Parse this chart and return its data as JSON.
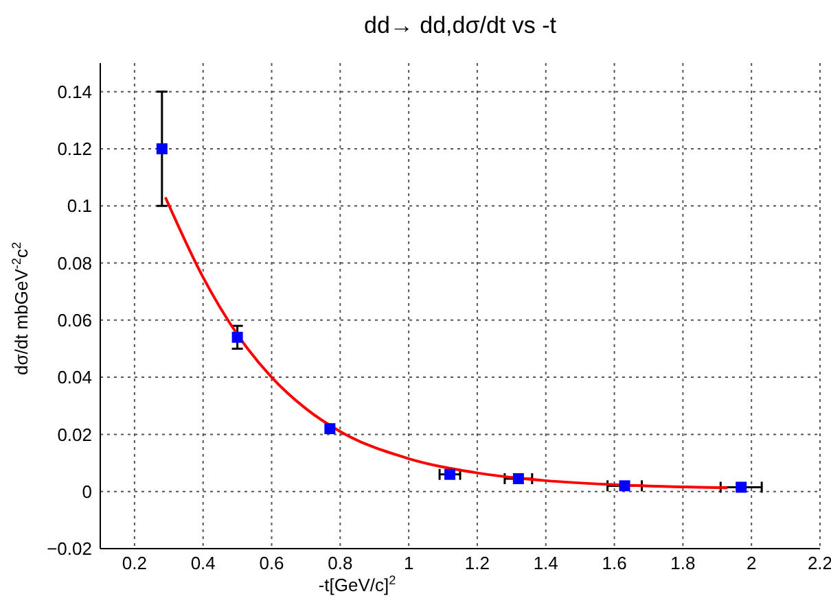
{
  "chart_data": {
    "type": "scatter",
    "title": "dd→ dd,dσ/dt vs -t",
    "xlabel": "-t[GeV/c]$^{2}$",
    "ylabel": "dσ/dt mbGeV$^{-2}$c$^{2}$",
    "xlim": [
      0.1,
      2.2
    ],
    "xticks": [
      0.2,
      0.4,
      0.6,
      0.8,
      1,
      1.2,
      1.4,
      1.6,
      1.8,
      2,
      2.2
    ],
    "ylim": [
      -0.02,
      0.15
    ],
    "yticks": [
      {
        "value": -0.02,
        "label": "−0.02"
      },
      0,
      0.02,
      0.04,
      0.06,
      0.08,
      0.1,
      0.12,
      0.14
    ],
    "grid": true,
    "marker": "square",
    "series": [
      {
        "color": "#0000ff",
        "x": [
          0.28,
          0.5,
          0.77,
          1.12,
          1.32,
          1.63,
          1.97
        ],
        "values": [
          0.12,
          0.054,
          0.022,
          0.006,
          0.0045,
          0.002,
          0.0015
        ],
        "errors": [
          0.02,
          0.004,
          null,
          null,
          null,
          null,
          null
        ],
        "xerrors": [
          null,
          null,
          null,
          0.03,
          0.04,
          0.05,
          0.06
        ]
      },
      {
        "type": "line",
        "color": "#ff0000",
        "marker": "none",
        "x": [
          0.29,
          0.4,
          0.5,
          0.6,
          0.7,
          0.8,
          1.0,
          1.2,
          1.4,
          1.6,
          1.8,
          1.93
        ],
        "values": [
          0.103,
          0.075,
          0.055,
          0.04,
          0.029,
          0.021,
          0.0115,
          0.0065,
          0.0038,
          0.0024,
          0.0016,
          0.0013
        ]
      }
    ]
  }
}
